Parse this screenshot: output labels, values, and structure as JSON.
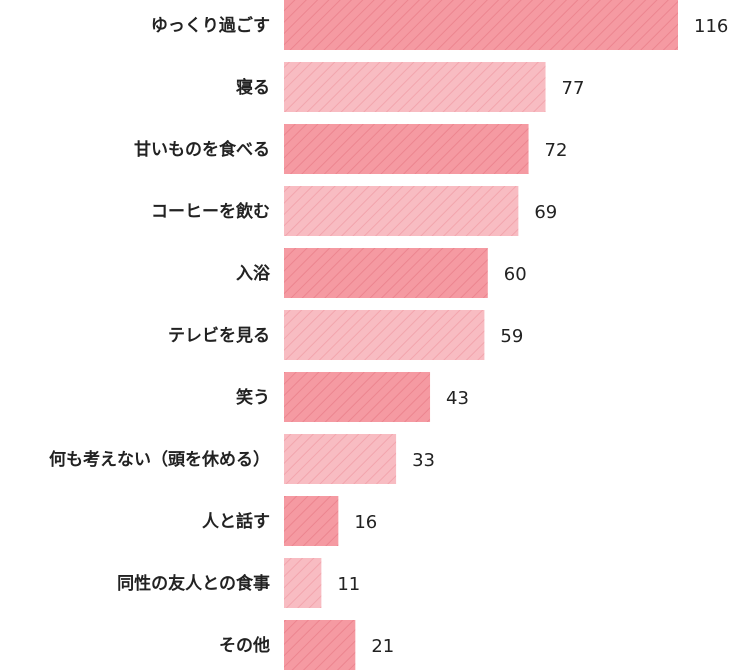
{
  "chart_data": {
    "type": "bar",
    "orientation": "horizontal",
    "title": "",
    "xlabel": "",
    "ylabel": "",
    "categories": [
      "ゆっくり過ごす",
      "寝る",
      "甘いものを食べる",
      "コーヒーを飲む",
      "入浴",
      "テレビを見る",
      "笑う",
      "何も考えない（頭を休める）",
      "人と話す",
      "同性の友人との食事",
      "その他"
    ],
    "values": [
      116,
      77,
      72,
      69,
      60,
      59,
      43,
      33,
      16,
      11,
      21
    ],
    "xlim": [
      0,
      120
    ],
    "grid": false,
    "colors": {
      "dark": "#f59aa2",
      "dark_hatch": "#ec858f",
      "light": "#f8bcc2",
      "light_hatch": "#f2a5ad"
    }
  }
}
